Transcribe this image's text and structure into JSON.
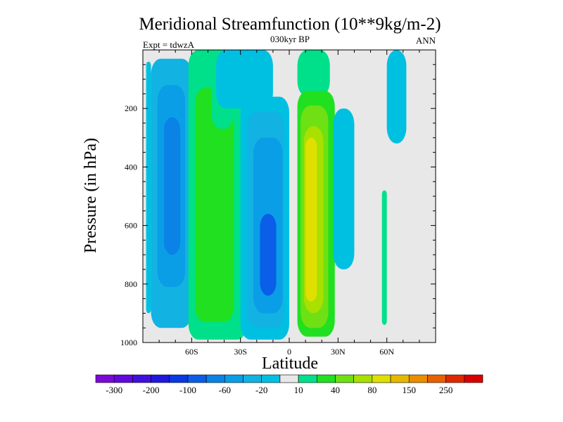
{
  "chart_data": {
    "type": "heatmap",
    "title": "Meridional Streamfunction (10**9kg/m-2)",
    "subtitle": "030kyr BP",
    "left_label": "Expt = tdwzA",
    "right_label": "ANN",
    "xlabel": "Latitude",
    "ylabel": "Pressure (in hPa)",
    "xlim": [
      -90,
      90
    ],
    "ylim": [
      1000,
      0
    ],
    "x_ticks": [
      {
        "value": -60,
        "label": "60S"
      },
      {
        "value": -30,
        "label": "30S"
      },
      {
        "value": 0,
        "label": "0"
      },
      {
        "value": 30,
        "label": "30N"
      },
      {
        "value": 60,
        "label": "60N"
      }
    ],
    "y_ticks": [
      {
        "value": 200,
        "label": "200"
      },
      {
        "value": 400,
        "label": "400"
      },
      {
        "value": 600,
        "label": "600"
      },
      {
        "value": 800,
        "label": "800"
      },
      {
        "value": 1000,
        "label": "1000"
      }
    ],
    "colorbar": {
      "placement": "bottom",
      "levels": [
        -300,
        -250,
        -200,
        -150,
        -100,
        -80,
        -60,
        -40,
        -20,
        -10,
        10,
        20,
        40,
        60,
        80,
        100,
        150,
        200,
        250,
        300
      ],
      "labels": [
        "-300",
        "-200",
        "-100",
        "-60",
        "-20",
        "10",
        "40",
        "80",
        "150",
        "250"
      ],
      "colors": [
        "#7a0ad8",
        "#6208e0",
        "#4010e0",
        "#2018e0",
        "#0a38e4",
        "#0a5ee8",
        "#0a82e6",
        "#0a9ee6",
        "#12b2e2",
        "#00c0e2",
        "#e8e8e8",
        "#00e08a",
        "#20e020",
        "#6ee014",
        "#a8e000",
        "#e0e000",
        "#e8b800",
        "#e88e00",
        "#e86000",
        "#e02800",
        "#d80000"
      ]
    },
    "background_color": "#e8e8e8",
    "cells": [
      {
        "lat": [
          -88,
          -85
        ],
        "p": [
          40,
          900
        ],
        "value": -15
      },
      {
        "lat": [
          -85,
          -60
        ],
        "p": [
          30,
          950
        ],
        "value": -30
      },
      {
        "lat": [
          -81,
          -64
        ],
        "p": [
          120,
          810
        ],
        "value": -50
      },
      {
        "lat": [
          -77,
          -67
        ],
        "p": [
          230,
          700
        ],
        "value": -70
      },
      {
        "lat": [
          -62,
          -26
        ],
        "p": [
          0,
          990
        ],
        "value": 15
      },
      {
        "lat": [
          -58,
          -34
        ],
        "p": [
          130,
          930
        ],
        "value": 25
      },
      {
        "lat": [
          -48,
          -34
        ],
        "p": [
          0,
          270
        ],
        "value": 15
      },
      {
        "lat": [
          -45,
          -10
        ],
        "p": [
          0,
          200
        ],
        "value": -15
      },
      {
        "lat": [
          -30,
          0
        ],
        "p": [
          160,
          990
        ],
        "value": -20
      },
      {
        "lat": [
          -26,
          -3
        ],
        "p": [
          210,
          950
        ],
        "value": -40
      },
      {
        "lat": [
          -22,
          -4
        ],
        "p": [
          300,
          900
        ],
        "value": -60
      },
      {
        "lat": [
          -18,
          -8
        ],
        "p": [
          560,
          840
        ],
        "value": -90
      },
      {
        "lat": [
          5,
          25
        ],
        "p": [
          0,
          160
        ],
        "value": 15
      },
      {
        "lat": [
          5,
          28
        ],
        "p": [
          140,
          980
        ],
        "value": 25
      },
      {
        "lat": [
          7,
          24
        ],
        "p": [
          190,
          950
        ],
        "value": 50
      },
      {
        "lat": [
          9,
          21
        ],
        "p": [
          260,
          900
        ],
        "value": 70
      },
      {
        "lat": [
          10,
          17
        ],
        "p": [
          300,
          860
        ],
        "value": 90
      },
      {
        "lat": [
          27,
          40
        ],
        "p": [
          200,
          750
        ],
        "value": -15
      },
      {
        "lat": [
          60,
          72
        ],
        "p": [
          0,
          320
        ],
        "value": -15
      },
      {
        "lat": [
          57,
          60
        ],
        "p": [
          480,
          940
        ],
        "value": 15
      }
    ]
  }
}
